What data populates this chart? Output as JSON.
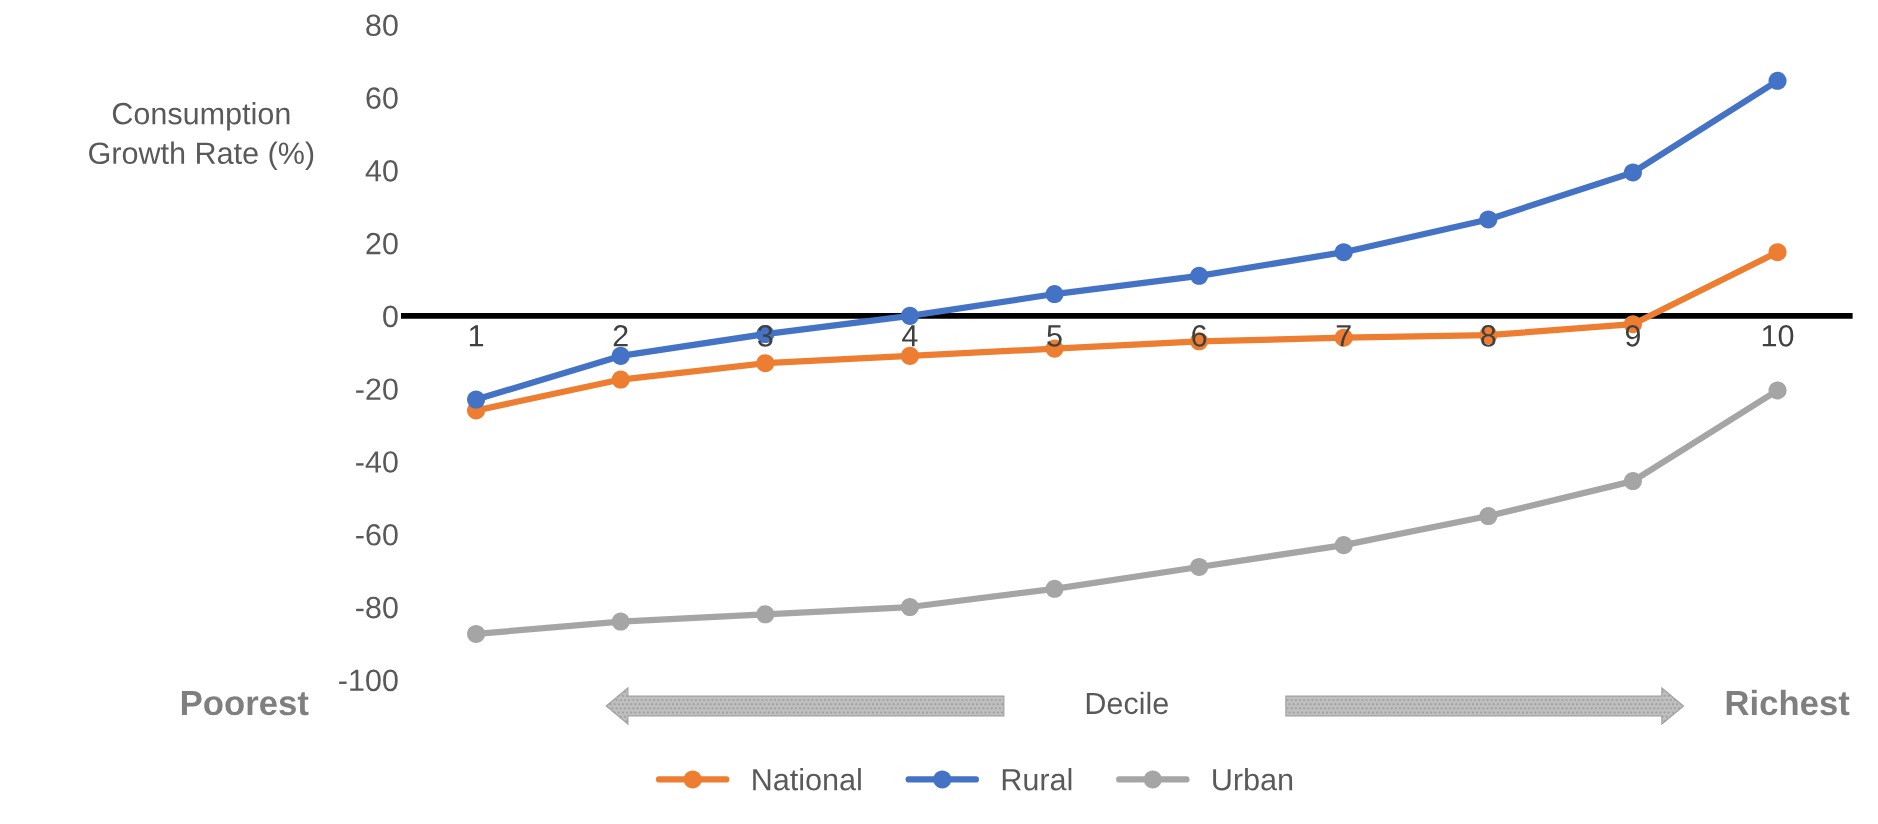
{
  "chart_data": {
    "type": "line",
    "ylabel": "Consumption\nGrowth Rate (%)",
    "xlabel": "Decile",
    "categories": [
      "1",
      "2",
      "3",
      "4",
      "5",
      "6",
      "7",
      "8",
      "9",
      "10"
    ],
    "series": [
      {
        "name": "National",
        "color": "#ed7d31",
        "values": [
          -26,
          -17.5,
          -13,
          -11,
          -9,
          -7,
          -6,
          -5.3,
          -2.3,
          17.5
        ]
      },
      {
        "name": "Rural",
        "color": "#4472c4",
        "values": [
          -23,
          -11,
          -5,
          0,
          6,
          11,
          17.5,
          26.5,
          39.4,
          64.6
        ]
      },
      {
        "name": "Urban",
        "color": "#a5a5a5",
        "values": [
          -87.4,
          -84,
          -82,
          -80,
          -75,
          -69,
          -63,
          -55,
          -45.4,
          -20.5
        ]
      }
    ],
    "ylim": [
      -100,
      80
    ],
    "yticks": [
      -100,
      -80,
      -60,
      -40,
      -20,
      0,
      20,
      40,
      60,
      80
    ],
    "annotations": [
      "Poorest",
      "Richest"
    ],
    "marker": "circle",
    "line_style": "solid",
    "legend": "bottom",
    "grid": false
  }
}
